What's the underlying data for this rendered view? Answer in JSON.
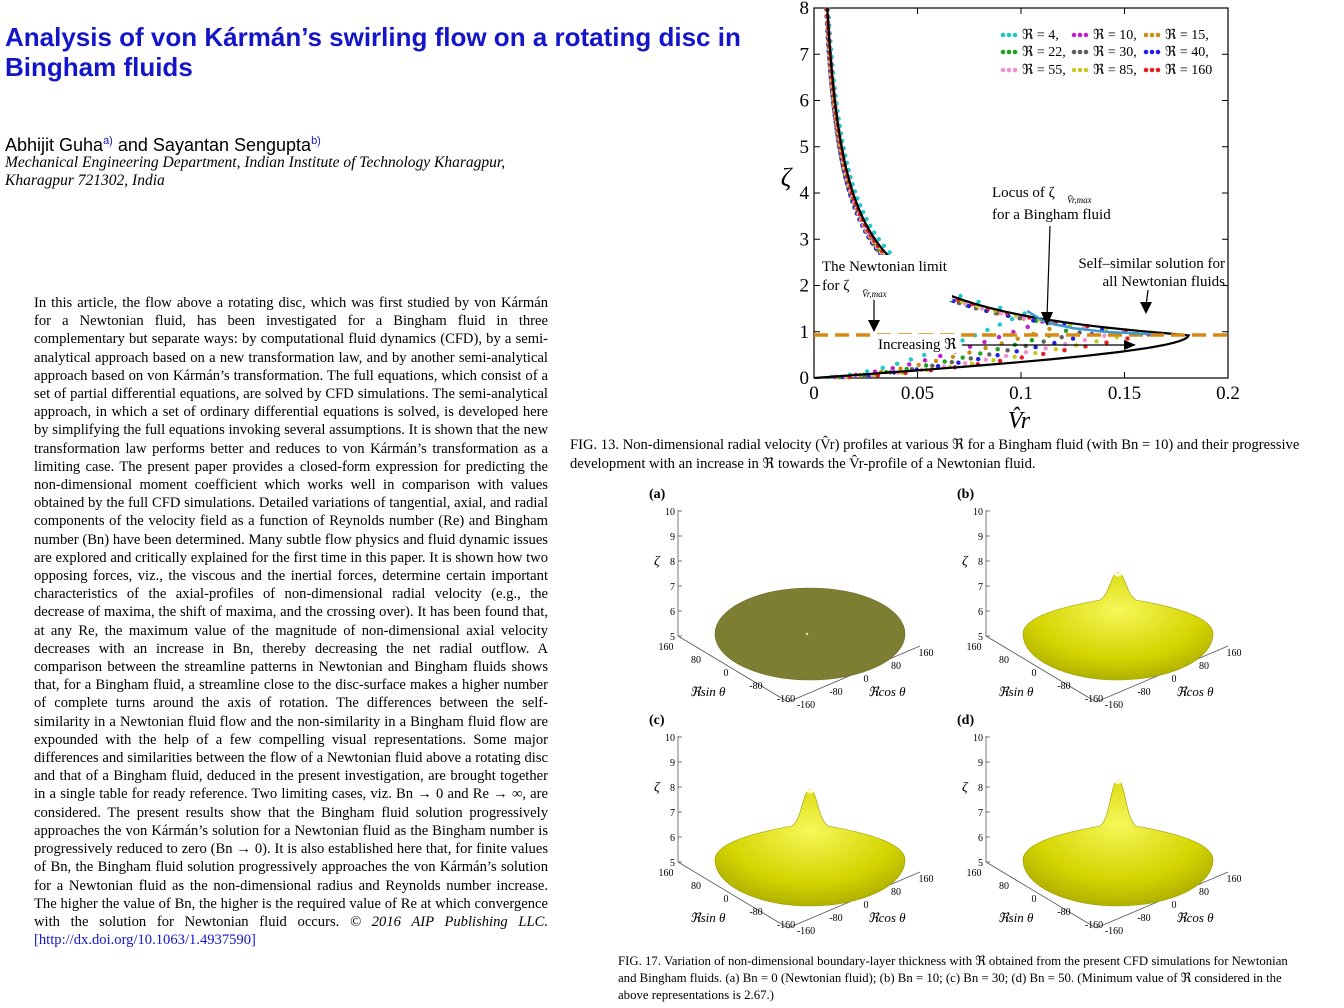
{
  "paper": {
    "title": "Analysis of von Kármán’s swirling flow on a rotating disc in Bingham fluids",
    "author1": "Abhijit Guha",
    "author1_sup": "a)",
    "and": "and",
    "author2": "Sayantan Sengupta",
    "author2_sup": "b)",
    "affiliation_line1": "Mechanical Engineering Department, Indian Institute of Technology Kharagpur,",
    "affiliation_line2": "Kharagpur 721302, India",
    "abstract": "In this article, the flow above a rotating disc, which was first studied by von Kármán for a Newtonian fluid, has been investigated for a Bingham fluid in three complementary but separate ways: by computational fluid dynamics (CFD), by a semi-analytical approach based on a new transformation law, and by another semi-analytical approach based on von Kármán’s transformation. The full equations, which consist of a set of partial differential equations, are solved by CFD simulations. The semi-analytical approach, in which a set of ordinary differential equations is solved, is developed here by simplifying the full equations invoking several assumptions. It is shown that the new transformation law performs better and reduces to von Kármán’s transformation as a limiting case. The present paper provides a closed-form expression for predicting the non-dimensional moment coefficient which works well in comparison with values obtained by the full CFD simulations. Detailed variations of tangential, axial, and radial components of the velocity field as a function of Reynolds number (Re) and Bingham number (Bn) have been determined. Many subtle flow physics and fluid dynamic issues are explored and critically explained for the first time in this paper. It is shown how two opposing forces, viz., the viscous and the inertial forces, determine certain important characteristics of the axial-profiles of non-dimensional radial velocity (e.g., the decrease of maxima, the shift of maxima, and the crossing over). It has been found that, at any Re, the maximum value of the magnitude of non-dimensional axial velocity decreases with an increase in Bn, thereby decreasing the net radial outflow. A comparison between the streamline patterns in Newtonian and Bingham fluids shows that, for a Bingham fluid, a streamline close to the disc-surface makes a higher number of complete turns around the axis of rotation. The differences between the self-similarity in a Newtonian fluid flow and the non-similarity in a Bingham fluid flow are expounded with the help of a few compelling visual representations. Some major differences and similarities between the flow of a Newtonian fluid above a rotating disc and that of a Bingham fluid, deduced in the present investigation, are brought together in a single table for ready reference. Two limiting cases, viz. Bn → 0 and Re → ∞, are considered. The present results show that the Bingham fluid solution progressively approaches the von Kármán’s solution for a Newtonian fluid as the Bingham number is progressively reduced to zero (Bn → 0). It is also established here that, for finite values of Bn, the Bingham fluid solution progressively approaches the von Kármán’s solution for a Newtonian fluid as the non-dimensional radius and Reynolds number increase. The higher the value of Bn, the higher is the required value of Re at which convergence with the solution for Newtonian fluid occurs.",
    "copyright": "© 2016 AIP Publishing LLC.",
    "doi": "[http://dx.doi.org/10.1063/1.4937590]"
  },
  "fig13": {
    "caption": "FIG. 13.  Non-dimensional radial velocity (V̂r) profiles at various ℜ for a Bingham fluid (with Bn = 10) and their progressive development with an increase in ℜ towards the V̂r-profile of a Newtonian fluid.",
    "annotations": {
      "locus_line1": "Locus of  ζ",
      "locus_sub": "V̂r,max",
      "locus_line2": "for a Bingham fluid",
      "newton_line1": "The Newtonian limit",
      "newton_line2": "for  ζ",
      "newton_sub": "V̂r,max",
      "selfsim_line1": "Self–similar solution for",
      "selfsim_line2": "all Newtonian fluids",
      "increasing": "Increasing ℜ"
    }
  },
  "fig17": {
    "caption": "FIG. 17.  Variation of non-dimensional boundary-layer thickness with ℜ obtained from the present CFD simulations for Newtonian and Bingham fluids. (a) Bn = 0 (Newtonian fluid); (b) Bn = 10; (c) Bn = 30; (d) Bn = 50. (Minimum value of ℜ considered in the above representations is 2.67.)",
    "panels": [
      {
        "label": "(a)",
        "peak": 0.0,
        "color": "#7e7e32"
      },
      {
        "label": "(b)",
        "peak": 0.7,
        "color": "#d2d200"
      },
      {
        "label": "(c)",
        "peak": 0.85,
        "color": "#d2d200"
      },
      {
        "label": "(d)",
        "peak": 1.0,
        "color": "#d2d200"
      }
    ],
    "zeta_label": "ζ",
    "z_ticks": [
      "10",
      "9",
      "8",
      "7",
      "6",
      "5"
    ],
    "rsin_label": "ℜsin θ",
    "rcos_label": "ℜcos θ",
    "rsin_ticks": [
      "160",
      "80",
      "0",
      "-80",
      "-160"
    ],
    "rcos_ticks": [
      "-160",
      "-80",
      "0",
      "80",
      "160"
    ]
  },
  "chart_data": {
    "type": "scatter",
    "xlabel": "V̂r",
    "ylabel": "ζ",
    "xlim": [
      0,
      0.2
    ],
    "ylim": [
      0,
      8
    ],
    "xticks": [
      "0",
      "0.05",
      "0.1",
      "0.15",
      "0.2"
    ],
    "yticks": [
      "0",
      "1",
      "2",
      "3",
      "4",
      "5",
      "6",
      "7",
      "8"
    ],
    "legend_placement": "top-right",
    "grid": false,
    "series": [
      {
        "name": "ℜ = 4,",
        "peak_v": 0.102,
        "peak_z": 1.4,
        "color": "#20c8c8"
      },
      {
        "name": "ℜ = 10,",
        "peak_v": 0.112,
        "peak_z": 1.25,
        "color": "#c020c8"
      },
      {
        "name": "ℜ = 15,",
        "peak_v": 0.12,
        "peak_z": 1.15,
        "color": "#c89010"
      },
      {
        "name": "ℜ = 22,",
        "peak_v": 0.128,
        "peak_z": 1.1,
        "color": "#20a020"
      },
      {
        "name": "ℜ = 30,",
        "peak_v": 0.135,
        "peak_z": 1.06,
        "color": "#606060"
      },
      {
        "name": "ℜ = 40,",
        "peak_v": 0.142,
        "peak_z": 1.03,
        "color": "#2020e0"
      },
      {
        "name": "ℜ = 55,",
        "peak_v": 0.15,
        "peak_z": 1.01,
        "color": "#f090d0"
      },
      {
        "name": "ℜ = 85,",
        "peak_v": 0.158,
        "peak_z": 0.99,
        "color": "#c8c820"
      },
      {
        "name": "ℜ = 160",
        "peak_v": 0.165,
        "peak_z": 0.97,
        "color": "#e02020"
      }
    ],
    "newtonian_peak": [
      0.181,
      0.93
    ],
    "newtonian_limit_zeta": 0.93,
    "locus_points": [
      [
        0.103,
        1.45
      ],
      [
        0.112,
        1.2
      ],
      [
        0.125,
        1.08
      ],
      [
        0.14,
        1.0
      ],
      [
        0.163,
        0.95
      ]
    ]
  }
}
